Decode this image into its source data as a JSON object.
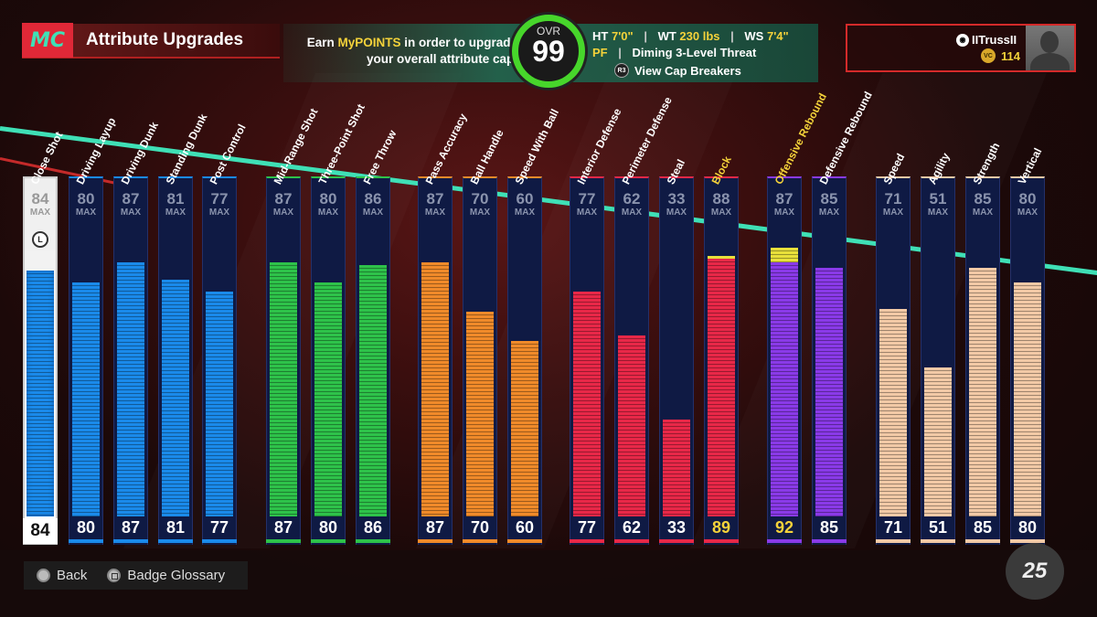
{
  "header": {
    "logo": "MC",
    "title": "Attribute Upgrades",
    "points_msg_pre": "Earn ",
    "points_msg_hl": "MyPOINTS",
    "points_msg_post": " in order to upgrade your overall attribute cap.",
    "ovr_label": "OVR",
    "ovr_value": "99",
    "ht_label": "HT",
    "ht_value": "7'0\"",
    "wt_label": "WT",
    "wt_value": "230 lbs",
    "ws_label": "WS",
    "ws_value": "7'4\"",
    "position": "PF",
    "archetype": "Diming 3-Level Threat",
    "cap_breakers_label": "View Cap Breakers",
    "r3": "R3"
  },
  "player": {
    "name": "IITrussII",
    "vc_amount": "114",
    "vc_icon": "VC"
  },
  "max_label": "MAX",
  "attributes": [
    {
      "name": "Close Shot",
      "cap": 84,
      "value": 84,
      "bonus": 0,
      "color": "#1a8aea",
      "group": "finishing",
      "selected": true
    },
    {
      "name": "Driving Layup",
      "cap": 80,
      "value": 80,
      "bonus": 0,
      "color": "#1a8aea",
      "group": "finishing"
    },
    {
      "name": "Driving Dunk",
      "cap": 87,
      "value": 87,
      "bonus": 0,
      "color": "#1a8aea",
      "group": "finishing"
    },
    {
      "name": "Standing Dunk",
      "cap": 81,
      "value": 81,
      "bonus": 0,
      "color": "#1a8aea",
      "group": "finishing"
    },
    {
      "name": "Post Control",
      "cap": 77,
      "value": 77,
      "bonus": 0,
      "color": "#1a8aea",
      "group": "finishing"
    },
    {
      "name": "Mid-Range Shot",
      "cap": 87,
      "value": 87,
      "bonus": 0,
      "color": "#2ec24a",
      "group": "shooting"
    },
    {
      "name": "Three-Point Shot",
      "cap": 80,
      "value": 80,
      "bonus": 0,
      "color": "#2ec24a",
      "group": "shooting"
    },
    {
      "name": "Free Throw",
      "cap": 86,
      "value": 86,
      "bonus": 0,
      "color": "#2ec24a",
      "group": "shooting"
    },
    {
      "name": "Pass Accuracy",
      "cap": 87,
      "value": 87,
      "bonus": 0,
      "color": "#f08a2a",
      "group": "playmaking"
    },
    {
      "name": "Ball Handle",
      "cap": 70,
      "value": 70,
      "bonus": 0,
      "color": "#f08a2a",
      "group": "playmaking"
    },
    {
      "name": "Speed With Ball",
      "cap": 60,
      "value": 60,
      "bonus": 0,
      "color": "#f08a2a",
      "group": "playmaking"
    },
    {
      "name": "Interior Defense",
      "cap": 77,
      "value": 77,
      "bonus": 0,
      "color": "#e82848",
      "group": "defense"
    },
    {
      "name": "Perimeter Defense",
      "cap": 62,
      "value": 62,
      "bonus": 0,
      "color": "#e82848",
      "group": "defense"
    },
    {
      "name": "Steal",
      "cap": 33,
      "value": 33,
      "bonus": 0,
      "color": "#e82848",
      "group": "defense"
    },
    {
      "name": "Block",
      "cap": 88,
      "value": 89,
      "bonus": 1,
      "color": "#e82848",
      "group": "defense",
      "gold": true
    },
    {
      "name": "Offensive Rebound",
      "cap": 87,
      "value": 92,
      "bonus": 5,
      "color": "#8a3ae8",
      "group": "rebounding",
      "gold": true
    },
    {
      "name": "Defensive Rebound",
      "cap": 85,
      "value": 85,
      "bonus": 0,
      "color": "#8a3ae8",
      "group": "rebounding"
    },
    {
      "name": "Speed",
      "cap": 71,
      "value": 71,
      "bonus": 0,
      "color": "#f2c9a6",
      "group": "physicals"
    },
    {
      "name": "Agility",
      "cap": 51,
      "value": 51,
      "bonus": 0,
      "color": "#f2c9a6",
      "group": "physicals"
    },
    {
      "name": "Strength",
      "cap": 85,
      "value": 85,
      "bonus": 0,
      "color": "#f2c9a6",
      "group": "physicals"
    },
    {
      "name": "Vertical",
      "cap": 80,
      "value": 80,
      "bonus": 0,
      "color": "#f2c9a6",
      "group": "physicals"
    }
  ],
  "bottom": {
    "back_label": "Back",
    "glossary_label": "Badge Glossary",
    "game_logo": "25"
  }
}
